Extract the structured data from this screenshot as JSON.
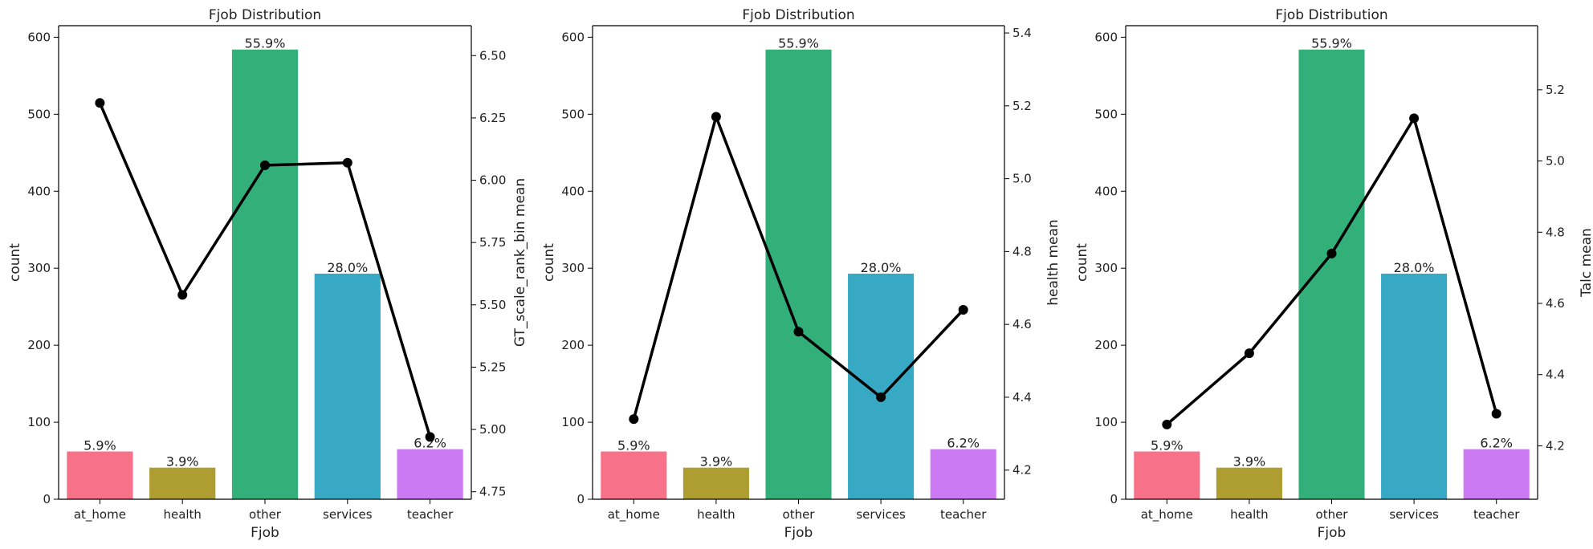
{
  "chart_data": [
    {
      "type": "bar",
      "title": "Fjob Distribution",
      "xlabel": "Fjob",
      "ylabel": "count",
      "y2label": "GT_scale_rank_bin mean",
      "categories": [
        "at_home",
        "health",
        "other",
        "services",
        "teacher"
      ],
      "values": [
        62,
        41,
        584,
        293,
        65
      ],
      "bar_labels": [
        "5.9%",
        "3.9%",
        "55.9%",
        "28.0%",
        "6.2%"
      ],
      "colors": [
        "#f77189",
        "#ae9d31",
        "#33b07a",
        "#38a9c5",
        "#cc7af4"
      ],
      "ylim": [
        0,
        615
      ],
      "yticks": [
        0,
        100,
        200,
        300,
        400,
        500,
        600
      ],
      "line_series": {
        "values": [
          6.31,
          5.54,
          6.06,
          6.07,
          4.97
        ],
        "color": "#000000"
      },
      "y2lim": [
        4.72,
        6.62
      ],
      "y2ticks": [
        "4.75",
        "5.00",
        "5.25",
        "5.50",
        "5.75",
        "6.00",
        "6.25",
        "6.50"
      ]
    },
    {
      "type": "bar",
      "title": "Fjob Distribution",
      "xlabel": "Fjob",
      "ylabel": "count",
      "y2label": "health mean",
      "categories": [
        "at_home",
        "health",
        "other",
        "services",
        "teacher"
      ],
      "values": [
        62,
        41,
        584,
        293,
        65
      ],
      "bar_labels": [
        "5.9%",
        "3.9%",
        "55.9%",
        "28.0%",
        "6.2%"
      ],
      "colors": [
        "#f77189",
        "#ae9d31",
        "#33b07a",
        "#38a9c5",
        "#cc7af4"
      ],
      "ylim": [
        0,
        615
      ],
      "yticks": [
        0,
        100,
        200,
        300,
        400,
        500,
        600
      ],
      "line_series": {
        "values": [
          4.34,
          5.17,
          4.58,
          4.4,
          4.64
        ],
        "color": "#000000"
      },
      "y2lim": [
        4.12,
        5.42
      ],
      "y2ticks": [
        "4.2",
        "4.4",
        "4.6",
        "4.8",
        "5.0",
        "5.2",
        "5.4"
      ]
    },
    {
      "type": "bar",
      "title": "Fjob Distribution",
      "xlabel": "Fjob",
      "ylabel": "count",
      "y2label": "Talc mean",
      "categories": [
        "at_home",
        "health",
        "other",
        "services",
        "teacher"
      ],
      "values": [
        62,
        41,
        584,
        293,
        65
      ],
      "bar_labels": [
        "5.9%",
        "3.9%",
        "55.9%",
        "28.0%",
        "6.2%"
      ],
      "colors": [
        "#f77189",
        "#ae9d31",
        "#33b07a",
        "#38a9c5",
        "#cc7af4"
      ],
      "ylim": [
        0,
        615
      ],
      "yticks": [
        0,
        100,
        200,
        300,
        400,
        500,
        600
      ],
      "line_series": {
        "values": [
          4.26,
          4.46,
          4.74,
          5.12,
          4.29
        ],
        "color": "#000000"
      },
      "y2lim": [
        4.05,
        5.38
      ],
      "y2ticks": [
        "4.2",
        "4.4",
        "4.6",
        "4.8",
        "5.0",
        "5.2"
      ]
    }
  ]
}
